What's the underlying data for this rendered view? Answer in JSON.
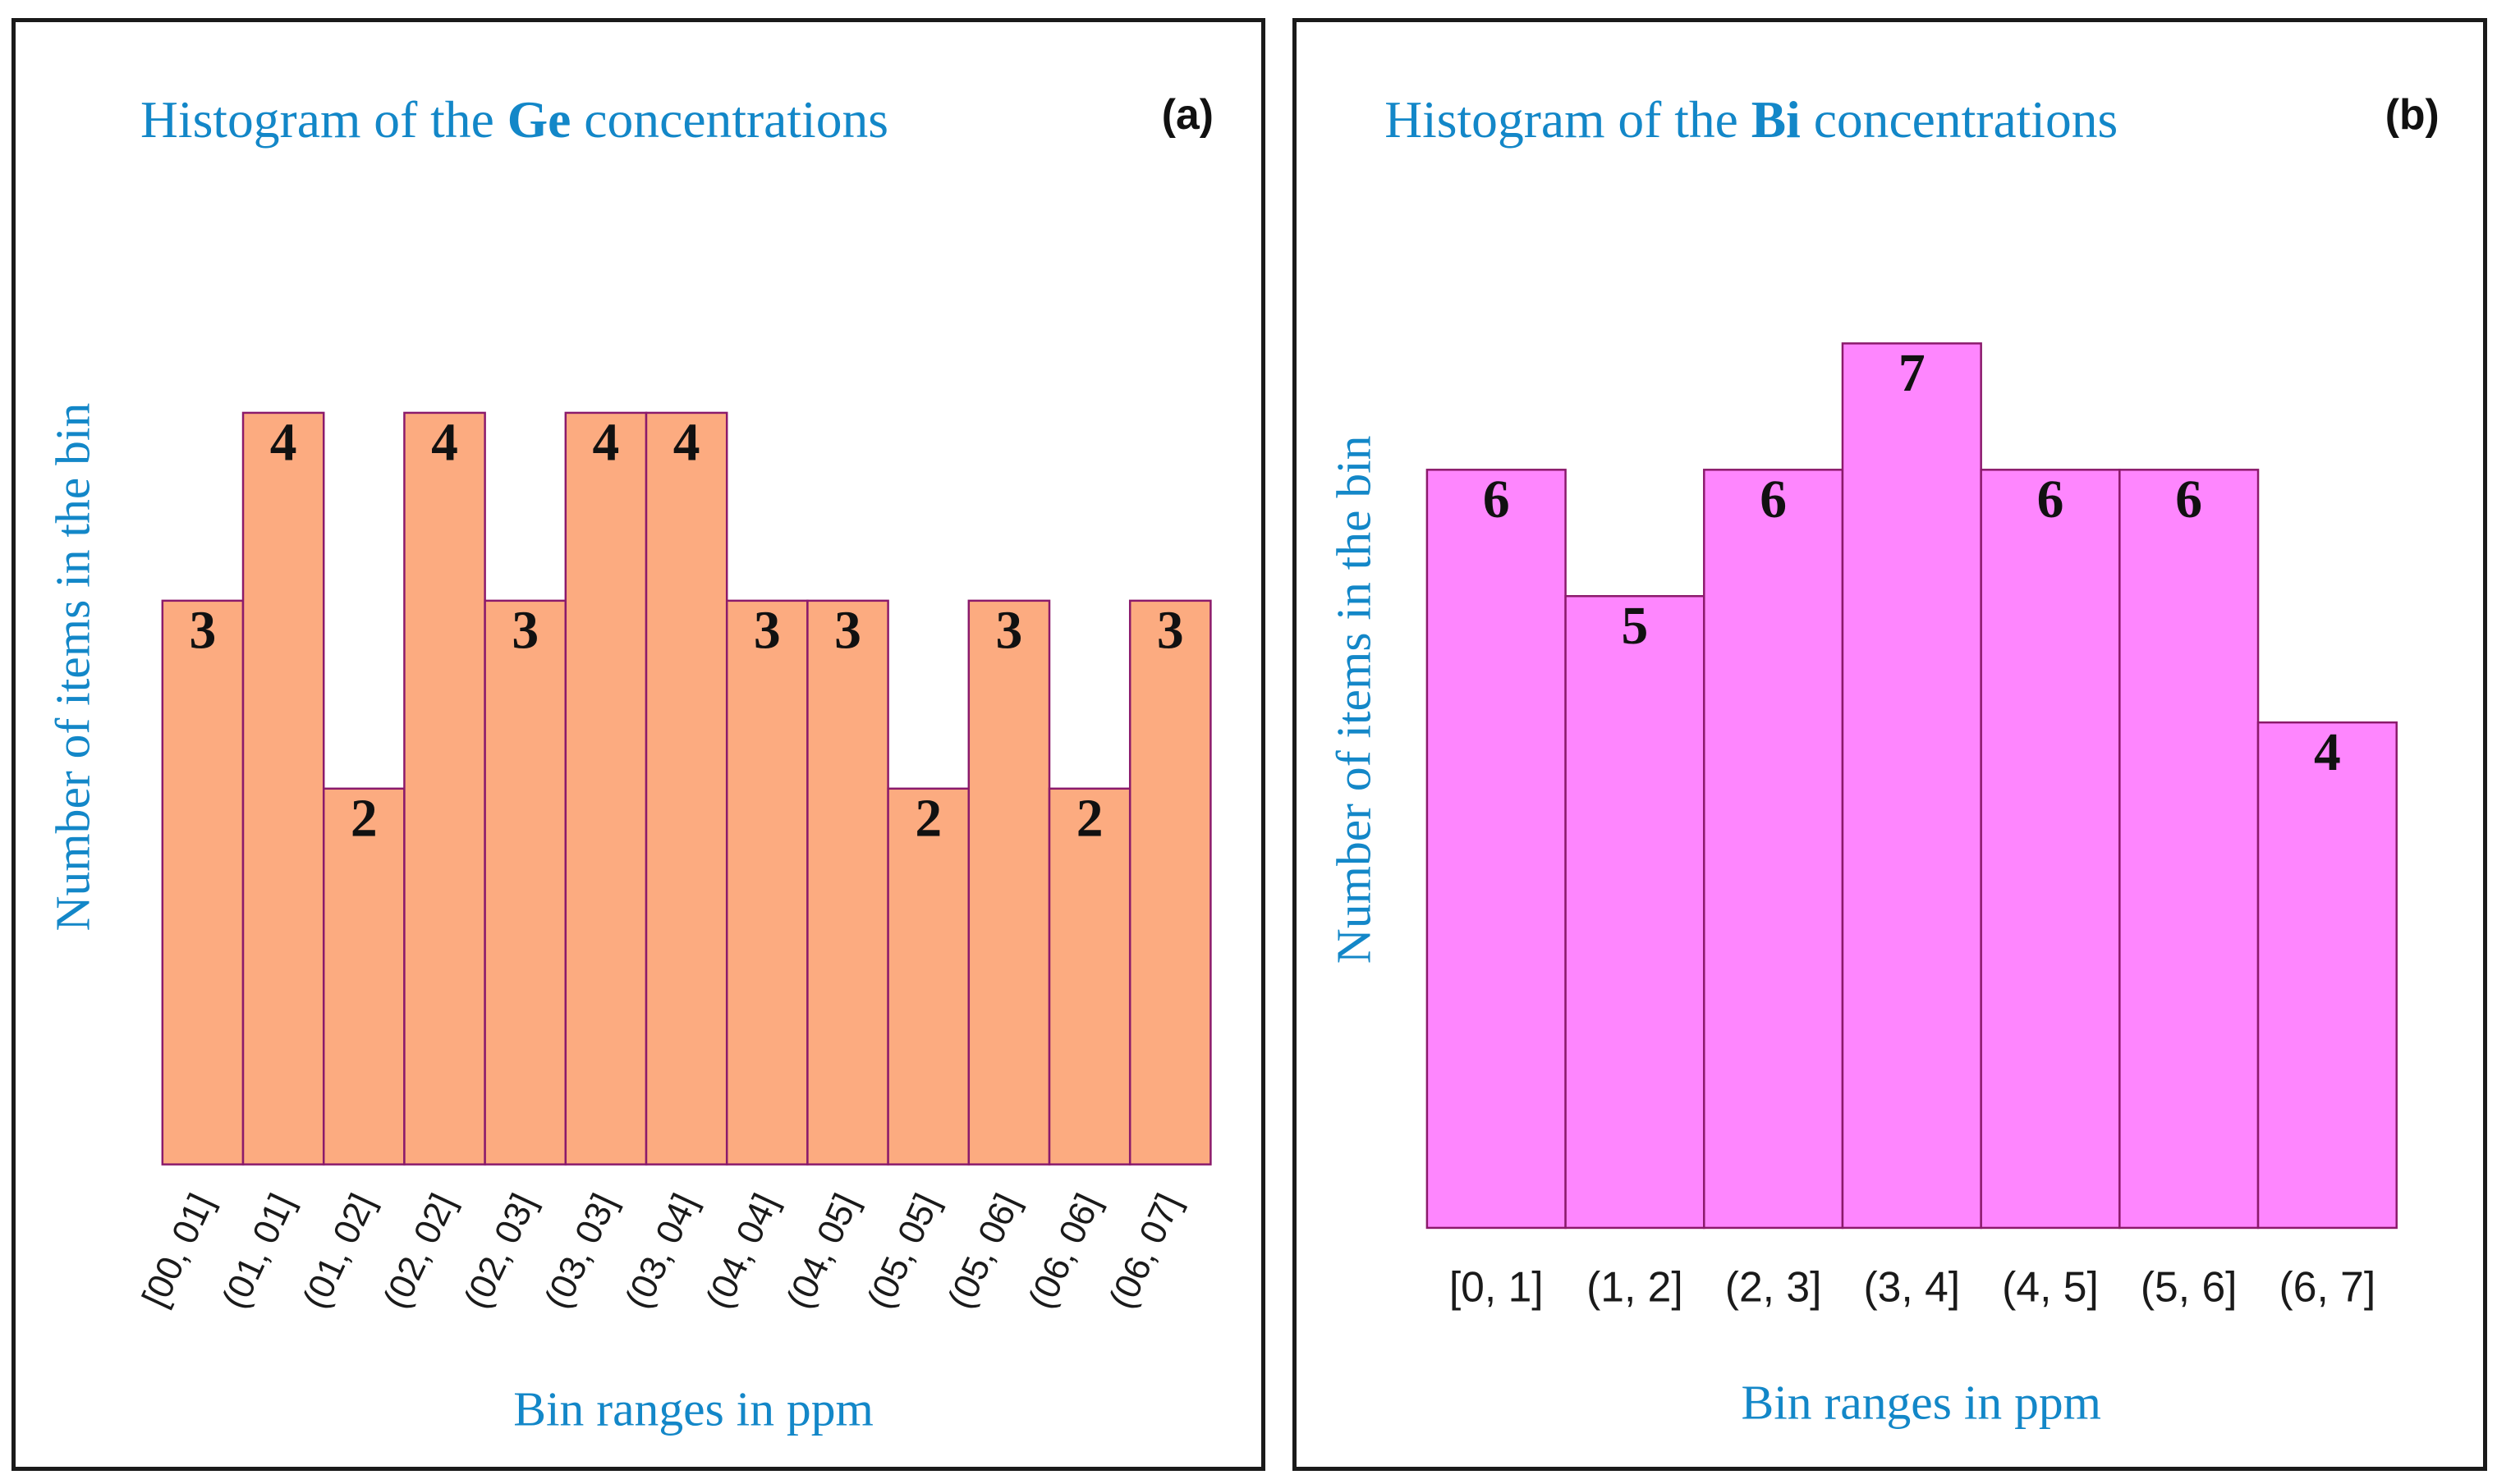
{
  "chart_data": [
    {
      "panel": "(a)",
      "type": "bar",
      "title": {
        "prefix": "Histogram of the ",
        "element": "Ge",
        "suffix": " concentrations"
      },
      "xlabel": "Bin ranges in ppm",
      "ylabel": "Number of items in the bin",
      "categories": [
        "[00, 01]",
        "(01, 01]",
        "(01, 02]",
        "(02, 02]",
        "(02, 03]",
        "(03, 03]",
        "(03, 04]",
        "(04, 04]",
        "(04, 05]",
        "(05, 05]",
        "(05, 06]",
        "(06, 06]",
        "(06, 07]"
      ],
      "values": [
        3,
        4,
        2,
        4,
        3,
        4,
        4,
        3,
        3,
        2,
        3,
        2,
        3
      ],
      "ylim": [
        0,
        4.6
      ],
      "bar_color": "#fcab80",
      "edge_color": "#8b1a6b",
      "tick_rotation": "rotated"
    },
    {
      "panel": "(b)",
      "type": "bar",
      "title": {
        "prefix": "Histogram of the ",
        "element": "Bi",
        "suffix": " concentrations"
      },
      "xlabel": "Bin ranges in ppm",
      "ylabel": "Number of items in the bin",
      "categories": [
        "[0, 1]",
        "(1, 2]",
        "(2, 3]",
        "(3, 4]",
        "(4, 5]",
        "(5, 6]",
        "(6, 7]"
      ],
      "values": [
        6,
        5,
        6,
        7,
        6,
        6,
        4
      ],
      "ylim": [
        0,
        7.6
      ],
      "bar_color": "#fe86fe",
      "edge_color": "#8b1a6b",
      "tick_rotation": "horizontal"
    }
  ]
}
